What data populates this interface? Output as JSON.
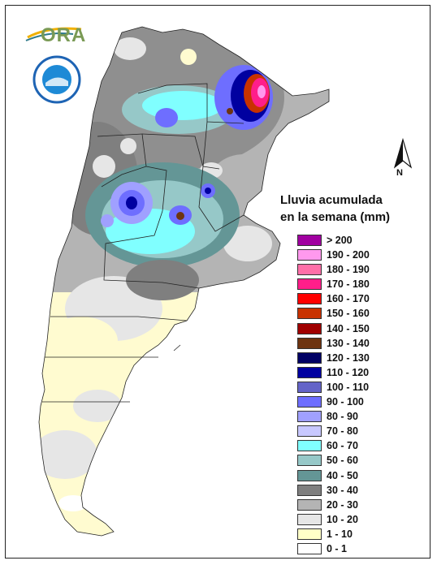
{
  "logo": {
    "text": "ORA",
    "seal_name": "ministerio-agroindustria-seal"
  },
  "title": {
    "line1": "Lluvia acumulada",
    "line2": "en la semana (mm)"
  },
  "north_arrow": {
    "label": "N"
  },
  "legend": [
    {
      "label": "> 200",
      "color": "#a000a0"
    },
    {
      "label": "190 - 200",
      "color": "#ff99ee"
    },
    {
      "label": "180 - 190",
      "color": "#ff6fa8"
    },
    {
      "label": "170 - 180",
      "color": "#ff1e8a"
    },
    {
      "label": "160 - 170",
      "color": "#ff0000"
    },
    {
      "label": "150 - 160",
      "color": "#c83200"
    },
    {
      "label": "140 - 150",
      "color": "#a00000"
    },
    {
      "label": "130 - 140",
      "color": "#6e3410"
    },
    {
      "label": "120 - 130",
      "color": "#000064"
    },
    {
      "label": "110 - 120",
      "color": "#0000a0"
    },
    {
      "label": "100 - 110",
      "color": "#6464c8"
    },
    {
      "label": "90 - 100",
      "color": "#6e6eff"
    },
    {
      "label": "80 - 90",
      "color": "#a0a0ff"
    },
    {
      "label": "70 - 80",
      "color": "#c8c8ff"
    },
    {
      "label": "60 - 70",
      "color": "#80ffff"
    },
    {
      "label": "50 - 60",
      "color": "#96c8c8"
    },
    {
      "label": "40 - 50",
      "color": "#649696"
    },
    {
      "label": "30 - 40",
      "color": "#7f7f7f"
    },
    {
      "label": "20 - 30",
      "color": "#b4b4b4"
    },
    {
      "label": "10 - 20",
      "color": "#e6e6e6"
    },
    {
      "label": "1 - 10",
      "color": "#ffffc8"
    },
    {
      "label": "0 - 1",
      "color": "#ffffff"
    }
  ]
}
